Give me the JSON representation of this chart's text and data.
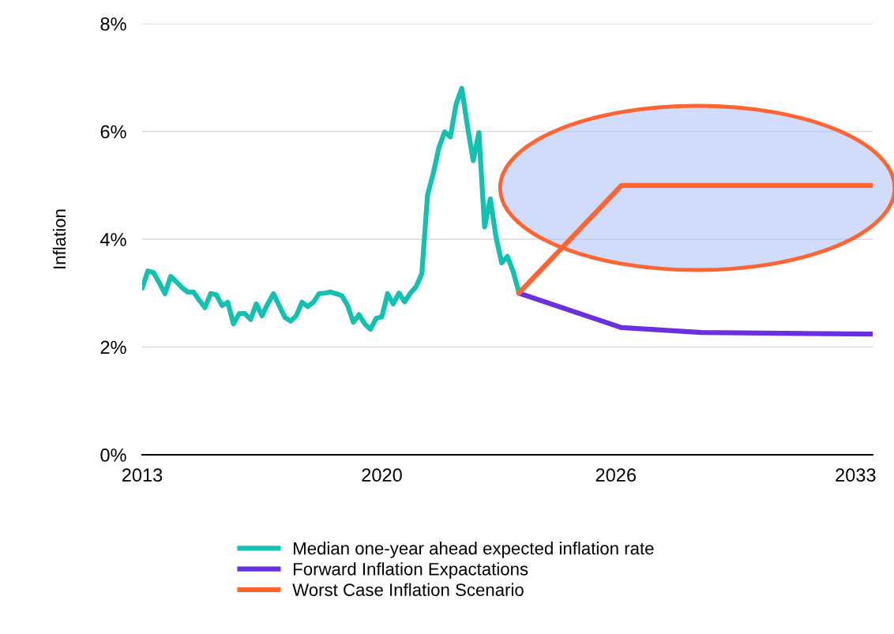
{
  "chart_data": {
    "type": "line",
    "ylabel": "Inflation",
    "categories": [
      "2013",
      null,
      null,
      null,
      null,
      null,
      null,
      null,
      null,
      null,
      null,
      null,
      null,
      null,
      null,
      null,
      null,
      null,
      null,
      null,
      null,
      null,
      null,
      null,
      null,
      null,
      null,
      null,
      null,
      null,
      null,
      null,
      null,
      null,
      null,
      null,
      null,
      null,
      null,
      null,
      null,
      null,
      "2020",
      null,
      null,
      null,
      null,
      null,
      null,
      null,
      null,
      null,
      null,
      null,
      null,
      null,
      null,
      null,
      null,
      null,
      null,
      null,
      null,
      null,
      null,
      null,
      null,
      null,
      null,
      null,
      null,
      null,
      null,
      null,
      null,
      null,
      null,
      null,
      null,
      null,
      null,
      null,
      null,
      "2026",
      null,
      null,
      null,
      null,
      null,
      null,
      null,
      null,
      null,
      null,
      null,
      null,
      null,
      null,
      null,
      null,
      null,
      null,
      null,
      null,
      null,
      null,
      null,
      null,
      null,
      null,
      null,
      null,
      null,
      null,
      null,
      null,
      null,
      null,
      null,
      null,
      null,
      null,
      null,
      null,
      null,
      "2033",
      null,
      null,
      null
    ],
    "series": [
      {
        "name": "Median one-year ahead expected inflation rate",
        "color": "#14c1b0",
        "values": [
          3.09,
          3.41,
          3.38,
          3.19,
          2.99,
          3.31,
          3.21,
          3.1,
          3.02,
          3.02,
          2.87,
          2.73,
          2.99,
          2.97,
          2.77,
          2.83,
          2.43,
          2.62,
          2.62,
          2.51,
          2.8,
          2.58,
          2.8,
          2.99,
          2.77,
          2.55,
          2.48,
          2.58,
          2.83,
          2.75,
          2.83,
          2.99,
          3.0,
          3.02,
          2.99,
          2.95,
          2.77,
          2.46,
          2.6,
          2.43,
          2.33,
          2.53,
          2.56,
          2.99,
          2.8,
          3.0,
          2.84,
          3.0,
          3.12,
          3.36,
          4.82,
          5.22,
          5.7,
          5.99,
          5.9,
          6.5,
          6.8,
          6.1,
          5.46,
          5.98,
          4.23,
          4.75,
          4.04,
          3.56,
          3.68,
          3.4,
          3.02,
          null,
          null,
          null,
          null,
          null,
          null,
          null,
          null,
          null,
          null,
          null,
          null,
          null,
          null,
          null,
          null,
          null,
          null,
          null,
          null,
          null,
          null,
          null,
          null,
          null,
          null,
          null,
          null,
          null,
          null,
          null,
          null,
          null,
          null,
          null,
          null,
          null,
          null,
          null,
          null,
          null,
          null,
          null,
          null,
          null,
          null,
          null,
          null,
          null,
          null,
          null,
          null,
          null,
          null,
          null,
          null,
          null,
          null,
          null,
          null,
          null,
          null
        ]
      },
      {
        "name": "Forward Inflation Expactations",
        "color": "#6a30e0",
        "values": [
          null,
          null,
          null,
          null,
          null,
          null,
          null,
          null,
          null,
          null,
          null,
          null,
          null,
          null,
          null,
          null,
          null,
          null,
          null,
          null,
          null,
          null,
          null,
          null,
          null,
          null,
          null,
          null,
          null,
          null,
          null,
          null,
          null,
          null,
          null,
          null,
          null,
          null,
          null,
          null,
          null,
          null,
          null,
          null,
          null,
          null,
          null,
          null,
          null,
          null,
          null,
          null,
          null,
          null,
          null,
          null,
          null,
          null,
          null,
          null,
          null,
          null,
          null,
          null,
          null,
          null,
          3.0,
          null,
          null,
          null,
          null,
          null,
          null,
          null,
          null,
          null,
          null,
          null,
          null,
          null,
          null,
          null,
          null,
          null,
          2.36,
          null,
          null,
          null,
          null,
          null,
          null,
          null,
          null,
          null,
          null,
          null,
          null,
          null,
          2.27,
          null,
          null,
          null,
          null,
          null,
          null,
          null,
          null,
          null,
          null,
          null,
          null,
          null,
          null,
          null,
          null,
          null,
          null,
          null,
          null,
          null,
          null,
          null,
          null,
          null,
          null,
          null,
          null,
          null,
          2.24
        ]
      },
      {
        "name": "Worst Case Inflation Scenario",
        "color": "#ff6433",
        "values": [
          null,
          null,
          null,
          null,
          null,
          null,
          null,
          null,
          null,
          null,
          null,
          null,
          null,
          null,
          null,
          null,
          null,
          null,
          null,
          null,
          null,
          null,
          null,
          null,
          null,
          null,
          null,
          null,
          null,
          null,
          null,
          null,
          null,
          null,
          null,
          null,
          null,
          null,
          null,
          null,
          null,
          null,
          null,
          null,
          null,
          null,
          null,
          null,
          null,
          null,
          null,
          null,
          null,
          null,
          null,
          null,
          null,
          null,
          null,
          null,
          null,
          null,
          null,
          null,
          null,
          null,
          3.0,
          null,
          null,
          null,
          null,
          null,
          null,
          null,
          null,
          null,
          null,
          null,
          null,
          null,
          null,
          null,
          null,
          null,
          5.0,
          null,
          null,
          null,
          null,
          null,
          null,
          null,
          null,
          null,
          null,
          null,
          null,
          null,
          null,
          null,
          null,
          null,
          null,
          null,
          null,
          null,
          null,
          null,
          null,
          null,
          null,
          null,
          null,
          null,
          null,
          null,
          null,
          null,
          null,
          null,
          null,
          null,
          null,
          null,
          null,
          null,
          null,
          null,
          5.0
        ]
      }
    ],
    "ylim": [
      0,
      8
    ],
    "yticks": [
      {
        "value": 0,
        "label": "0%"
      },
      {
        "value": 2,
        "label": "2%"
      },
      {
        "value": 4,
        "label": "4%"
      },
      {
        "value": 6,
        "label": "6%"
      },
      {
        "value": 8,
        "label": "8%"
      }
    ],
    "grid": "y",
    "legend": "bottom",
    "marker": "none",
    "line_style": "solid"
  }
}
